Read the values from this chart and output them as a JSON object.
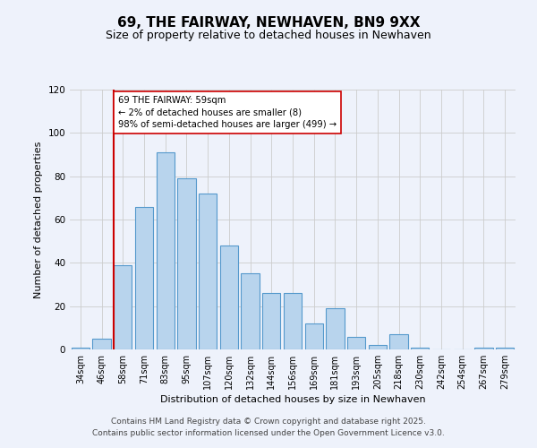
{
  "title": "69, THE FAIRWAY, NEWHAVEN, BN9 9XX",
  "subtitle": "Size of property relative to detached houses in Newhaven",
  "xlabel": "Distribution of detached houses by size in Newhaven",
  "ylabel": "Number of detached properties",
  "bar_labels": [
    "34sqm",
    "46sqm",
    "58sqm",
    "71sqm",
    "83sqm",
    "95sqm",
    "107sqm",
    "120sqm",
    "132sqm",
    "144sqm",
    "156sqm",
    "169sqm",
    "181sqm",
    "193sqm",
    "205sqm",
    "218sqm",
    "230sqm",
    "242sqm",
    "254sqm",
    "267sqm",
    "279sqm"
  ],
  "bar_values": [
    1,
    5,
    39,
    66,
    91,
    79,
    72,
    48,
    35,
    26,
    26,
    12,
    19,
    6,
    2,
    7,
    1,
    0,
    0,
    1,
    1
  ],
  "bar_color": "#b8d4ed",
  "bar_edge_color": "#5599cc",
  "background_color": "#eef2fb",
  "grid_color": "#cccccc",
  "ylim": [
    0,
    120
  ],
  "yticks": [
    0,
    20,
    40,
    60,
    80,
    100,
    120
  ],
  "property_line_idx": 2,
  "property_line_color": "#cc0000",
  "annotation_line1": "69 THE FAIRWAY: 59sqm",
  "annotation_line2": "← 2% of detached houses are smaller (8)",
  "annotation_line3": "98% of semi-detached houses are larger (499) →",
  "annotation_box_color": "#ffffff",
  "annotation_border_color": "#cc0000",
  "footer_line1": "Contains HM Land Registry data © Crown copyright and database right 2025.",
  "footer_line2": "Contains public sector information licensed under the Open Government Licence v3.0.",
  "title_fontsize": 11,
  "subtitle_fontsize": 9,
  "axis_label_fontsize": 8,
  "tick_fontsize": 7,
  "footer_fontsize": 6.5
}
